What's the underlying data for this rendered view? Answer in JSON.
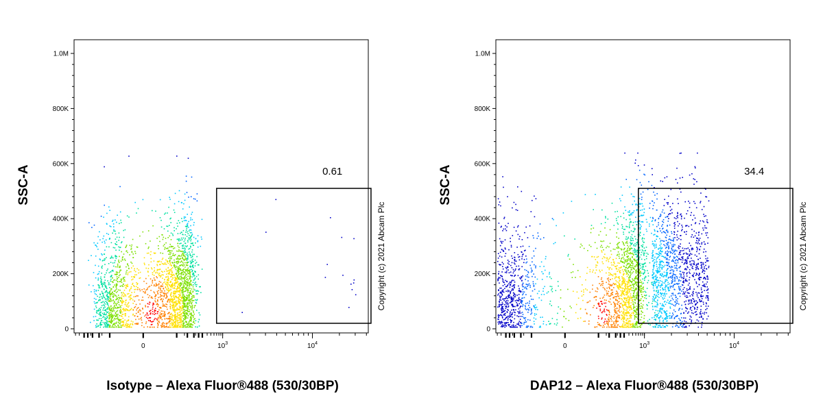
{
  "chart_data": [
    {
      "type": "scatter",
      "xlabel": "Isotype – Alexa Fluor®488 (530/30BP)",
      "ylabel": "SSC-A",
      "y_ticks": [
        "0",
        "200K",
        "400K",
        "600K",
        "800K",
        "1.0M"
      ],
      "y_tick_values": [
        0,
        200000,
        400000,
        600000,
        800000,
        1000000
      ],
      "x_ticks": [
        {
          "base": "0",
          "exp": ""
        },
        {
          "base": "10",
          "exp": "3"
        },
        {
          "base": "10",
          "exp": "4"
        }
      ],
      "x_tick_values": [
        0,
        1000,
        10000
      ],
      "x_scale": "biexponential",
      "ylim": [
        0,
        1000000
      ],
      "gate": {
        "label": "0.61",
        "x_range": [
          700,
          45000
        ],
        "y_range": [
          20000,
          510000
        ]
      },
      "population": {
        "x_center": 30,
        "x_spread": 220,
        "y_center": 140000,
        "y_spread": 160000,
        "gated_fraction": 0.0061
      },
      "copyright": "Copyright (c) 2021 Abcam Plc"
    },
    {
      "type": "scatter",
      "xlabel": "DAP12 – Alexa Fluor®488 (530/30BP)",
      "ylabel": "SSC-A",
      "y_ticks": [
        "0",
        "200K",
        "400K",
        "600K",
        "800K",
        "1.0M"
      ],
      "y_tick_values": [
        0,
        200000,
        400000,
        600000,
        800000,
        1000000
      ],
      "x_ticks": [
        {
          "base": "0",
          "exp": ""
        },
        {
          "base": "10",
          "exp": "3"
        },
        {
          "base": "10",
          "exp": "4"
        }
      ],
      "x_tick_values": [
        0,
        1000,
        10000
      ],
      "x_scale": "biexponential",
      "ylim": [
        0,
        1000000
      ],
      "gate": {
        "label": "34.4",
        "x_range": [
          700,
          45000
        ],
        "y_range": [
          20000,
          510000
        ]
      },
      "population": {
        "x_center": 150,
        "x_spread": 700,
        "y_center": 150000,
        "y_spread": 170000,
        "gated_fraction": 0.344
      },
      "copyright": "Copyright (c) 2021 Abcam Plc"
    }
  ],
  "colors": {
    "density": [
      "#0000c8",
      "#0064ff",
      "#00c8ff",
      "#00e0a0",
      "#7ce000",
      "#ffe000",
      "#ff8000",
      "#ff0000"
    ],
    "axis": "#000000"
  }
}
